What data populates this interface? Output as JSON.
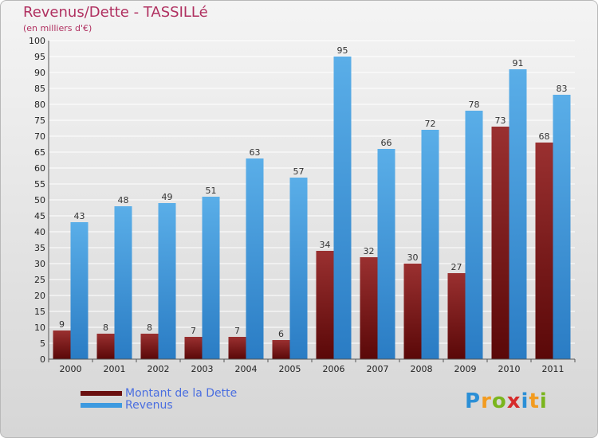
{
  "title": "Revenus/Dette - TASSILLé",
  "subtitle": "(en milliers d'€)",
  "logo": {
    "letters": [
      "P",
      "r",
      "o",
      "x",
      "i",
      "t",
      "i"
    ],
    "colors": [
      "#2b8fd6",
      "#f29b1f",
      "#7ab51d",
      "#d62b2b",
      "#2b8fd6",
      "#f29b1f",
      "#7ab51d"
    ]
  },
  "colors": {
    "dette": "#7a1c1c",
    "revenus": "#3d9ae0",
    "title": "#b03060",
    "legend_text": "#4a6ee0"
  },
  "chart_data": {
    "type": "bar",
    "title": "Revenus/Dette - TASSILLé",
    "subtitle": "(en milliers d'€)",
    "categories": [
      "2000",
      "2001",
      "2002",
      "2003",
      "2004",
      "2005",
      "2006",
      "2007",
      "2008",
      "2009",
      "2010",
      "2011"
    ],
    "series": [
      {
        "name": "Montant de la Dette",
        "values": [
          9,
          8,
          8,
          7,
          7,
          6,
          34,
          32,
          30,
          27,
          73,
          68
        ]
      },
      {
        "name": "Revenus",
        "values": [
          43,
          48,
          49,
          51,
          63,
          57,
          95,
          66,
          72,
          78,
          91,
          83
        ]
      }
    ],
    "ylim": [
      0,
      100
    ],
    "ytick_step": 5,
    "grid": true,
    "legend": "bottom-left"
  }
}
